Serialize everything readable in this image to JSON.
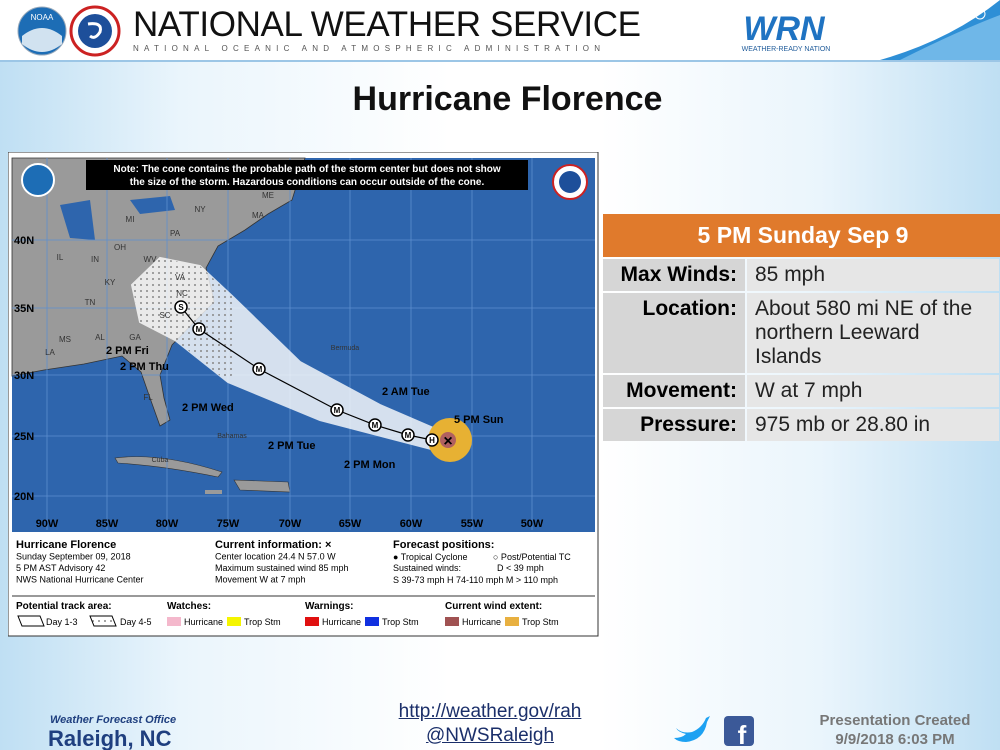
{
  "header": {
    "title": "NATIONAL WEATHER SERVICE",
    "subtitle": "NATIONAL OCEANIC AND ATMOSPHERIC ADMINISTRATION",
    "noaa_logo": "NOAA",
    "wrn_logo": "WRN",
    "wrn_tagline": "WEATHER-READY NATION"
  },
  "slide_title": "Hurricane Florence",
  "map": {
    "note": [
      "Note: The cone contains the probable path of the storm center but does not show",
      "the size of the storm. Hazardous conditions can occur outside of the cone."
    ],
    "lat_labels": [
      "40N",
      "35N",
      "30N",
      "25N",
      "20N"
    ],
    "lon_labels": [
      "90W",
      "85W",
      "80W",
      "75W",
      "70W",
      "65W",
      "60W",
      "55W",
      "50W"
    ],
    "place_labels": [
      "MI",
      "NY",
      "ME",
      "MA",
      "PA",
      "OH",
      "IN",
      "IL",
      "WV",
      "VA",
      "KY",
      "TN",
      "NC",
      "SC",
      "GA",
      "AL",
      "MS",
      "LA",
      "FL",
      "Bermuda",
      "Bahamas",
      "Cuba"
    ],
    "track_points": [
      "S",
      "M",
      "M",
      "M",
      "M",
      "M",
      "H"
    ],
    "track_labels": [
      "2 PM Fri",
      "2 PM Thu",
      "2 PM Wed",
      "2 PM Tue",
      "2 PM Mon",
      "2 AM Tue",
      "5 PM Sun"
    ],
    "current_marker": "×",
    "info": {
      "storm": [
        "Hurricane Florence",
        "Sunday September 09, 2018",
        "5 PM AST Advisory 42",
        "NWS National Hurricane Center"
      ],
      "current": [
        "Current information: ×",
        "Center location 24.4 N 57.0 W",
        "Maximum sustained wind 85 mph",
        "Movement W at 7 mph"
      ],
      "forecast": [
        "Forecast positions:",
        "● Tropical Cyclone",
        "○ Post/Potential TC",
        "Sustained winds:",
        "D < 39 mph",
        "S 39-73 mph  H 74-110 mph  M > 110 mph"
      ]
    },
    "legend": {
      "track_title": "Potential track area:",
      "track_items": [
        "Day 1-3",
        "Day 4-5"
      ],
      "watches_title": "Watches:",
      "watches": [
        "Hurricane",
        "Trop Stm"
      ],
      "warnings_title": "Warnings:",
      "warnings": [
        "Hurricane",
        "Trop Stm"
      ],
      "wind_title": "Current wind extent:",
      "wind": [
        "Hurricane",
        "Trop Stm"
      ]
    }
  },
  "forecast": {
    "time": "5 PM Sunday Sep 9",
    "rows": [
      [
        "Max Winds:",
        "85 mph"
      ],
      [
        "Location:",
        "About 580 mi NE of the northern Leeward Islands"
      ],
      [
        "Movement:",
        "W at 7 mph"
      ],
      [
        "Pressure:",
        "975 mb or 28.80 in"
      ]
    ]
  },
  "footer": {
    "office_label": "Weather Forecast Office",
    "office": "Raleigh, NC",
    "links": [
      "http://weather.gov/rah",
      "@NWSRaleigh"
    ],
    "facebook_icon": "f",
    "created_label": "Presentation Created",
    "created": "9/9/2018 6:03 PM"
  }
}
